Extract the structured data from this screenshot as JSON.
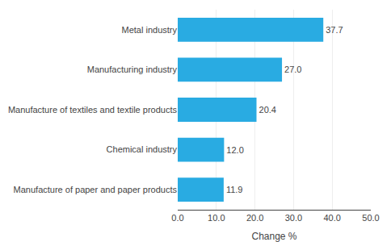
{
  "chart_data": {
    "type": "bar",
    "orientation": "horizontal",
    "categories": [
      "Manufacture of paper and paper products",
      "Chemical industry",
      "Manufacture of textiles and textile products",
      "Manufacturing industry",
      "Metal industry"
    ],
    "values": [
      11.9,
      12.0,
      20.4,
      27.0,
      37.7
    ],
    "value_labels": [
      "11.9",
      "12.0",
      "20.4",
      "27.0",
      "37.7"
    ],
    "data_labels": true,
    "color": "#29abe2",
    "xlabel": "Change %",
    "xlim": [
      0,
      50
    ],
    "xticks": [
      {
        "value": 0,
        "label": "0.0"
      },
      {
        "value": 10,
        "label": "10.0"
      },
      {
        "value": 20,
        "label": "20.0"
      },
      {
        "value": 30,
        "label": "30.0"
      },
      {
        "value": 40,
        "label": "40.0"
      },
      {
        "value": 50,
        "label": "50.0"
      }
    ],
    "grid": true
  }
}
